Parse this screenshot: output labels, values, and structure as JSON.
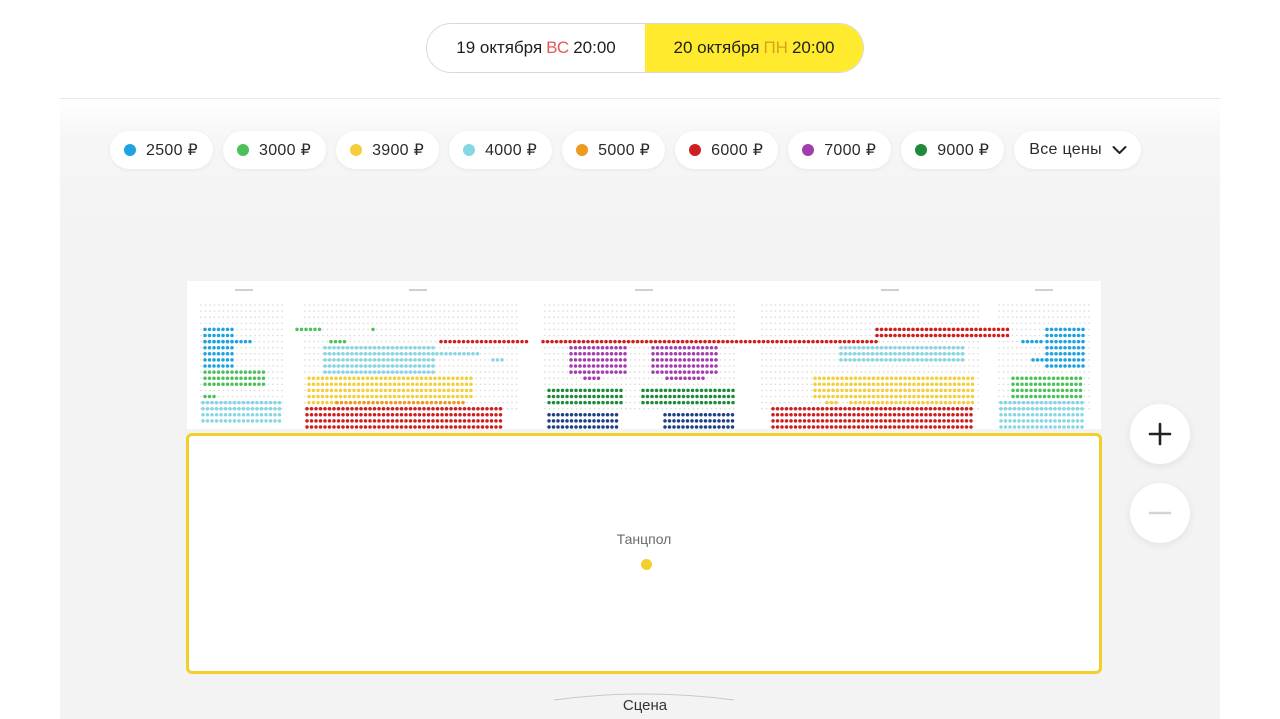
{
  "dates": [
    {
      "day": "19 октября",
      "weekday": "ВС",
      "time": "20:00",
      "selected": false
    },
    {
      "day": "20 октября",
      "weekday": "ПН",
      "time": "20:00",
      "selected": true
    }
  ],
  "price_filters": [
    {
      "label": "2500 ₽",
      "color": "#1ea3e1"
    },
    {
      "label": "3000 ₽",
      "color": "#4cc15a"
    },
    {
      "label": "3900 ₽",
      "color": "#f4cf3c"
    },
    {
      "label": "4000 ₽",
      "color": "#86d6e4"
    },
    {
      "label": "5000 ₽",
      "color": "#ed9a1e"
    },
    {
      "label": "6000 ₽",
      "color": "#cc1f1f"
    },
    {
      "label": "7000 ₽",
      "color": "#a33dad"
    },
    {
      "label": "9000 ₽",
      "color": "#1f8a39"
    }
  ],
  "all_prices_label": "Все цены",
  "seat_map": {
    "dance_floor_label": "Танцпол",
    "dance_floor_color": "#f2cf2d",
    "stage_label": "Сцена"
  },
  "icons": {
    "chevron": "chevron-down-icon",
    "zoom_in": "plus-icon",
    "zoom_out": "minus-icon"
  }
}
